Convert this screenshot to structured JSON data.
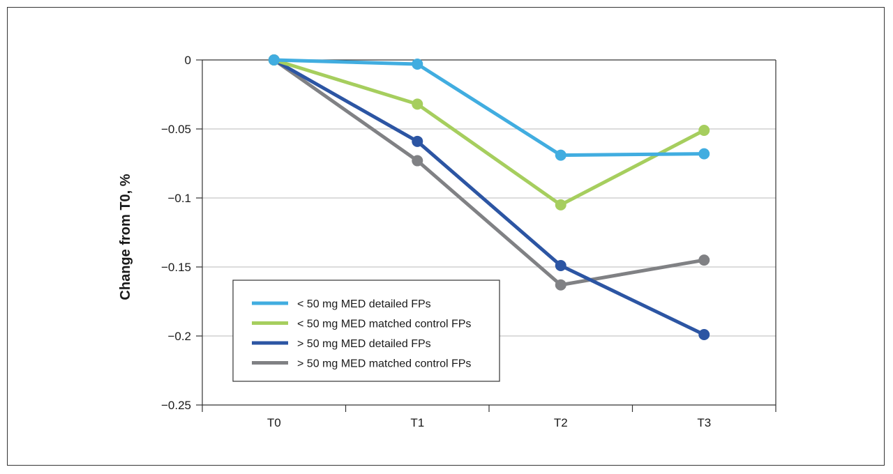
{
  "chart_data": {
    "type": "line",
    "ylabel": "Change from T0, %",
    "xlabel": "",
    "categories": [
      "T0",
      "T1",
      "T2",
      "T3"
    ],
    "ylim": [
      -0.25,
      0
    ],
    "yticks": [
      0,
      -0.05,
      -0.1,
      -0.15,
      -0.2,
      -0.25
    ],
    "ytick_labels": [
      "0",
      "−0.05",
      "−0.1",
      "−0.15",
      "−0.2",
      "−0.25"
    ],
    "grid": "horizontal",
    "legend_position": "bottom-left",
    "series": [
      {
        "name": "< 50 mg MED detailed FPs",
        "color": "#41ade0",
        "values": [
          0,
          -0.003,
          -0.069,
          -0.068
        ]
      },
      {
        "name": "< 50 mg MED matched control FPs",
        "color": "#a6ce5e",
        "values": [
          0,
          -0.032,
          -0.105,
          -0.051
        ]
      },
      {
        "name": "> 50 mg MED detailed FPs",
        "color": "#2c55a3",
        "values": [
          0,
          -0.059,
          -0.149,
          -0.199
        ]
      },
      {
        "name": "> 50 mg MED matched control FPs",
        "color": "#808184",
        "values": [
          0,
          -0.073,
          -0.163,
          -0.145
        ]
      }
    ]
  }
}
